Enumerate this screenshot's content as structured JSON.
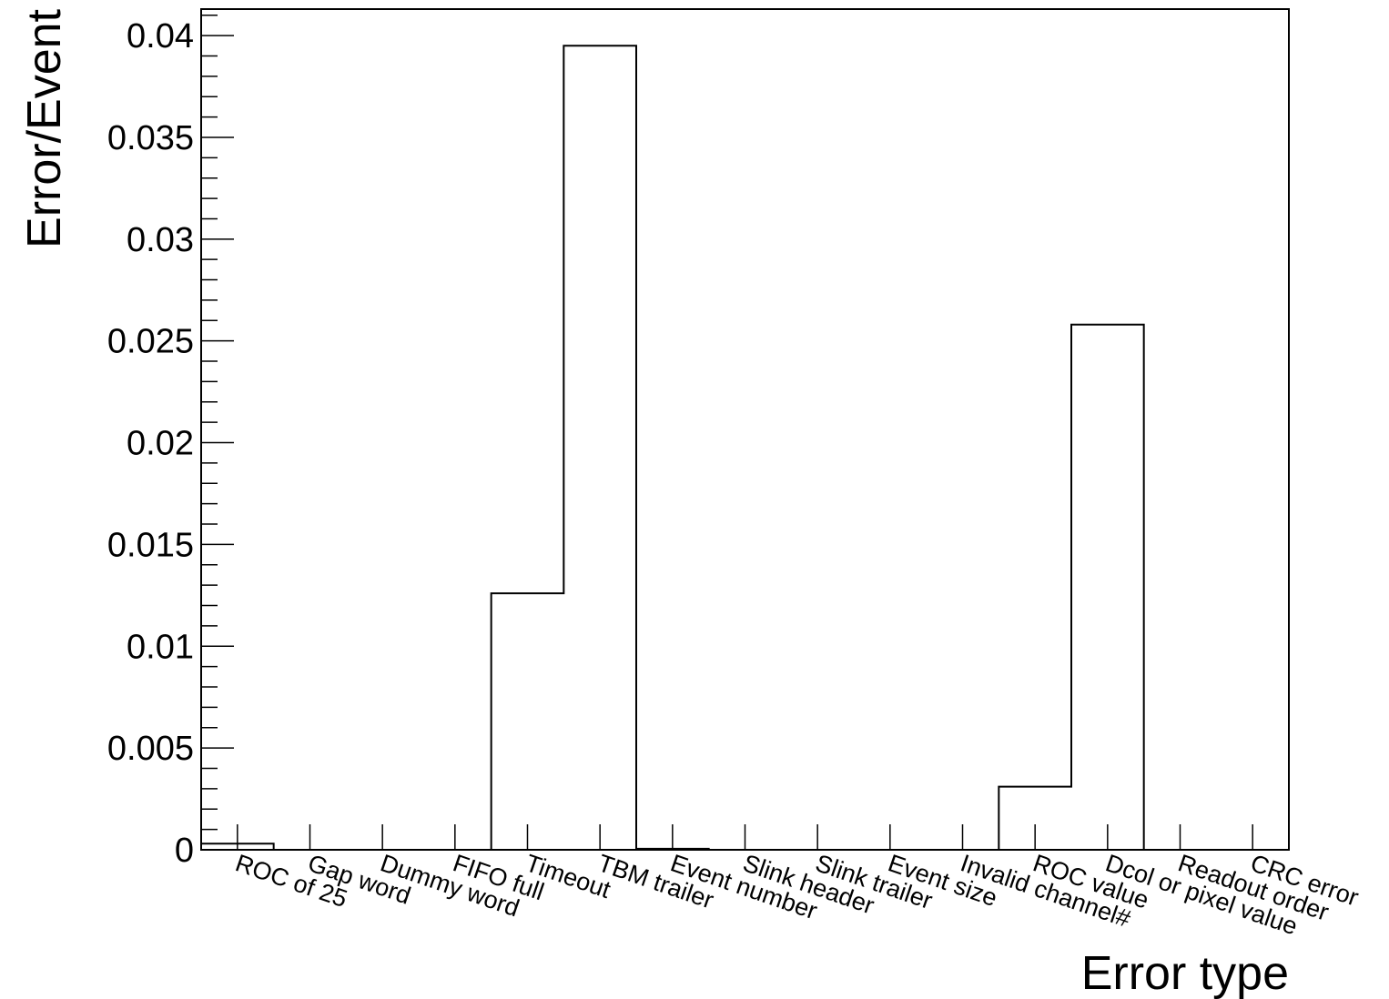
{
  "chart_data": {
    "type": "bar",
    "style": "histogram-step",
    "xlabel": "Error type",
    "ylabel": "Error/Event",
    "ylim": [
      0,
      0.0413
    ],
    "yticks": [
      0,
      0.005,
      0.01,
      0.015,
      0.02,
      0.025,
      0.03,
      0.035,
      0.04
    ],
    "ytick_labels": [
      "0",
      "0.005",
      "0.01",
      "0.015",
      "0.02",
      "0.025",
      "0.03",
      "0.035",
      "0.04"
    ],
    "categories": [
      "ROC of 25",
      "Gap word",
      "Dummy word",
      "FIFO full",
      "Timeout",
      "TBM trailer",
      "Event number",
      "Slink header",
      "Slink trailer",
      "Event size",
      "Invalid channel#",
      "ROC value",
      "Dcol or pixel value",
      "Readout order",
      "CRC error"
    ],
    "values": [
      0.0003,
      0,
      0,
      0,
      0.0126,
      0.0395,
      5e-05,
      0,
      0,
      0,
      0,
      0.0031,
      0.0258,
      0,
      0
    ],
    "grid": false,
    "legend": "none",
    "colors": {
      "line": "#000000",
      "background": "#ffffff"
    }
  }
}
